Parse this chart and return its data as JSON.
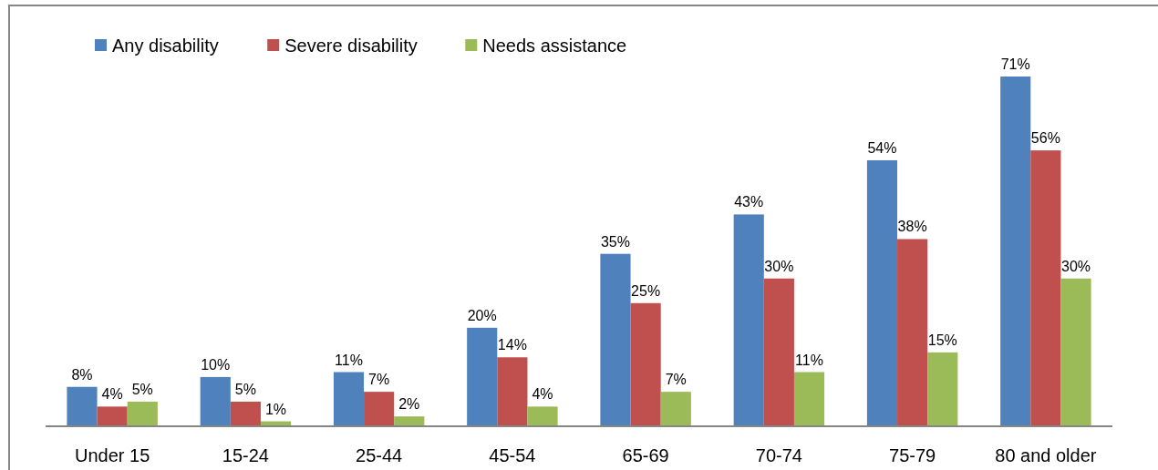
{
  "chart_data": {
    "type": "bar",
    "categories": [
      "Under 15",
      "15-24",
      "25-44",
      "45-54",
      "65-69",
      "70-74",
      "75-79",
      "80 and older"
    ],
    "series": [
      {
        "name": "Any disability",
        "color": "#4f81bd",
        "values": [
          8,
          10,
          11,
          20,
          35,
          43,
          54,
          71
        ],
        "value_labels": [
          "8%",
          "10%",
          "11%",
          "20%",
          "35%",
          "43%",
          "54%",
          "71%"
        ]
      },
      {
        "name": "Severe disability",
        "color": "#c0504d",
        "values": [
          4,
          5,
          7,
          14,
          25,
          30,
          38,
          56
        ],
        "value_labels": [
          "4%",
          "5%",
          "7%",
          "14%",
          "25%",
          "30%",
          "38%",
          "56%"
        ]
      },
      {
        "name": "Needs assistance",
        "color": "#9bbb59",
        "values": [
          5,
          1,
          2,
          4,
          7,
          11,
          15,
          30
        ],
        "value_labels": [
          "5%",
          "1%",
          "2%",
          "4%",
          "7%",
          "11%",
          "15%",
          "30%"
        ]
      }
    ],
    "tick_labels": "x",
    "legend": "top left"
  }
}
